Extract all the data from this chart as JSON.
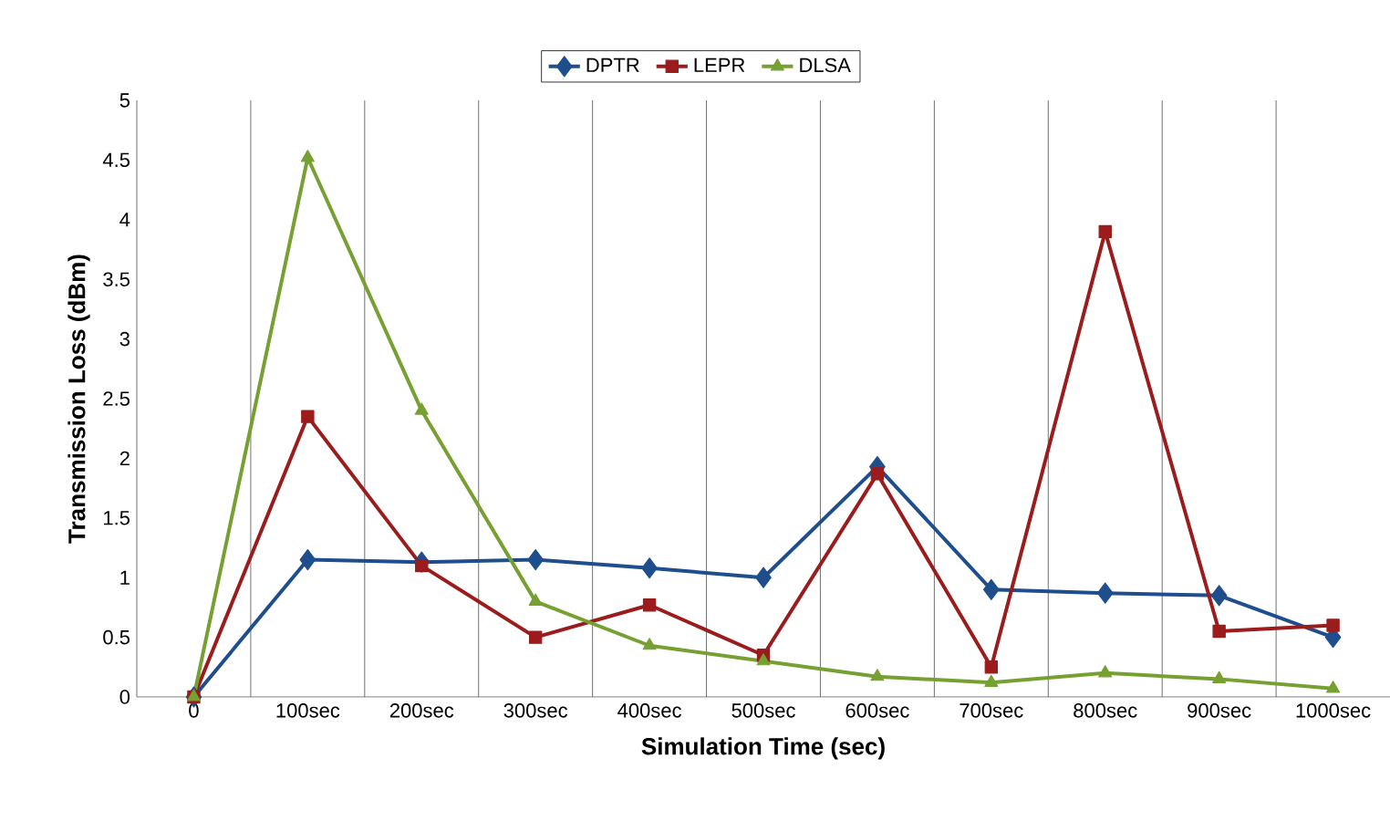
{
  "chart_data": {
    "type": "line",
    "xlabel": "Simulation Time (sec)",
    "ylabel": "Transmission  Loss (dBm)",
    "categories": [
      "0",
      "100sec",
      "200sec",
      "300sec",
      "400sec",
      "500sec",
      "600sec",
      "700sec",
      "800sec",
      "900sec",
      "1000sec"
    ],
    "series": [
      {
        "name": "DPTR",
        "color": "#1f4e8c",
        "marker": "diamond",
        "values": [
          0,
          1.15,
          1.13,
          1.15,
          1.08,
          1.0,
          1.93,
          0.9,
          0.87,
          0.85,
          0.5
        ]
      },
      {
        "name": "LEPR",
        "color": "#9b1c1c",
        "marker": "square",
        "values": [
          0,
          2.35,
          1.1,
          0.5,
          0.77,
          0.35,
          1.87,
          0.25,
          3.9,
          0.55,
          0.6
        ]
      },
      {
        "name": "DLSA",
        "color": "#77a032",
        "marker": "triangle",
        "values": [
          0,
          4.52,
          2.4,
          0.8,
          0.43,
          0.3,
          0.17,
          0.12,
          0.2,
          0.15,
          0.07
        ]
      }
    ],
    "ylim": [
      0,
      5
    ],
    "yticks": [
      0,
      0.5,
      1,
      1.5,
      2,
      2.5,
      3,
      3.5,
      4,
      4.5,
      5
    ],
    "grid": "x",
    "legend": "top",
    "line_style": "solid"
  }
}
